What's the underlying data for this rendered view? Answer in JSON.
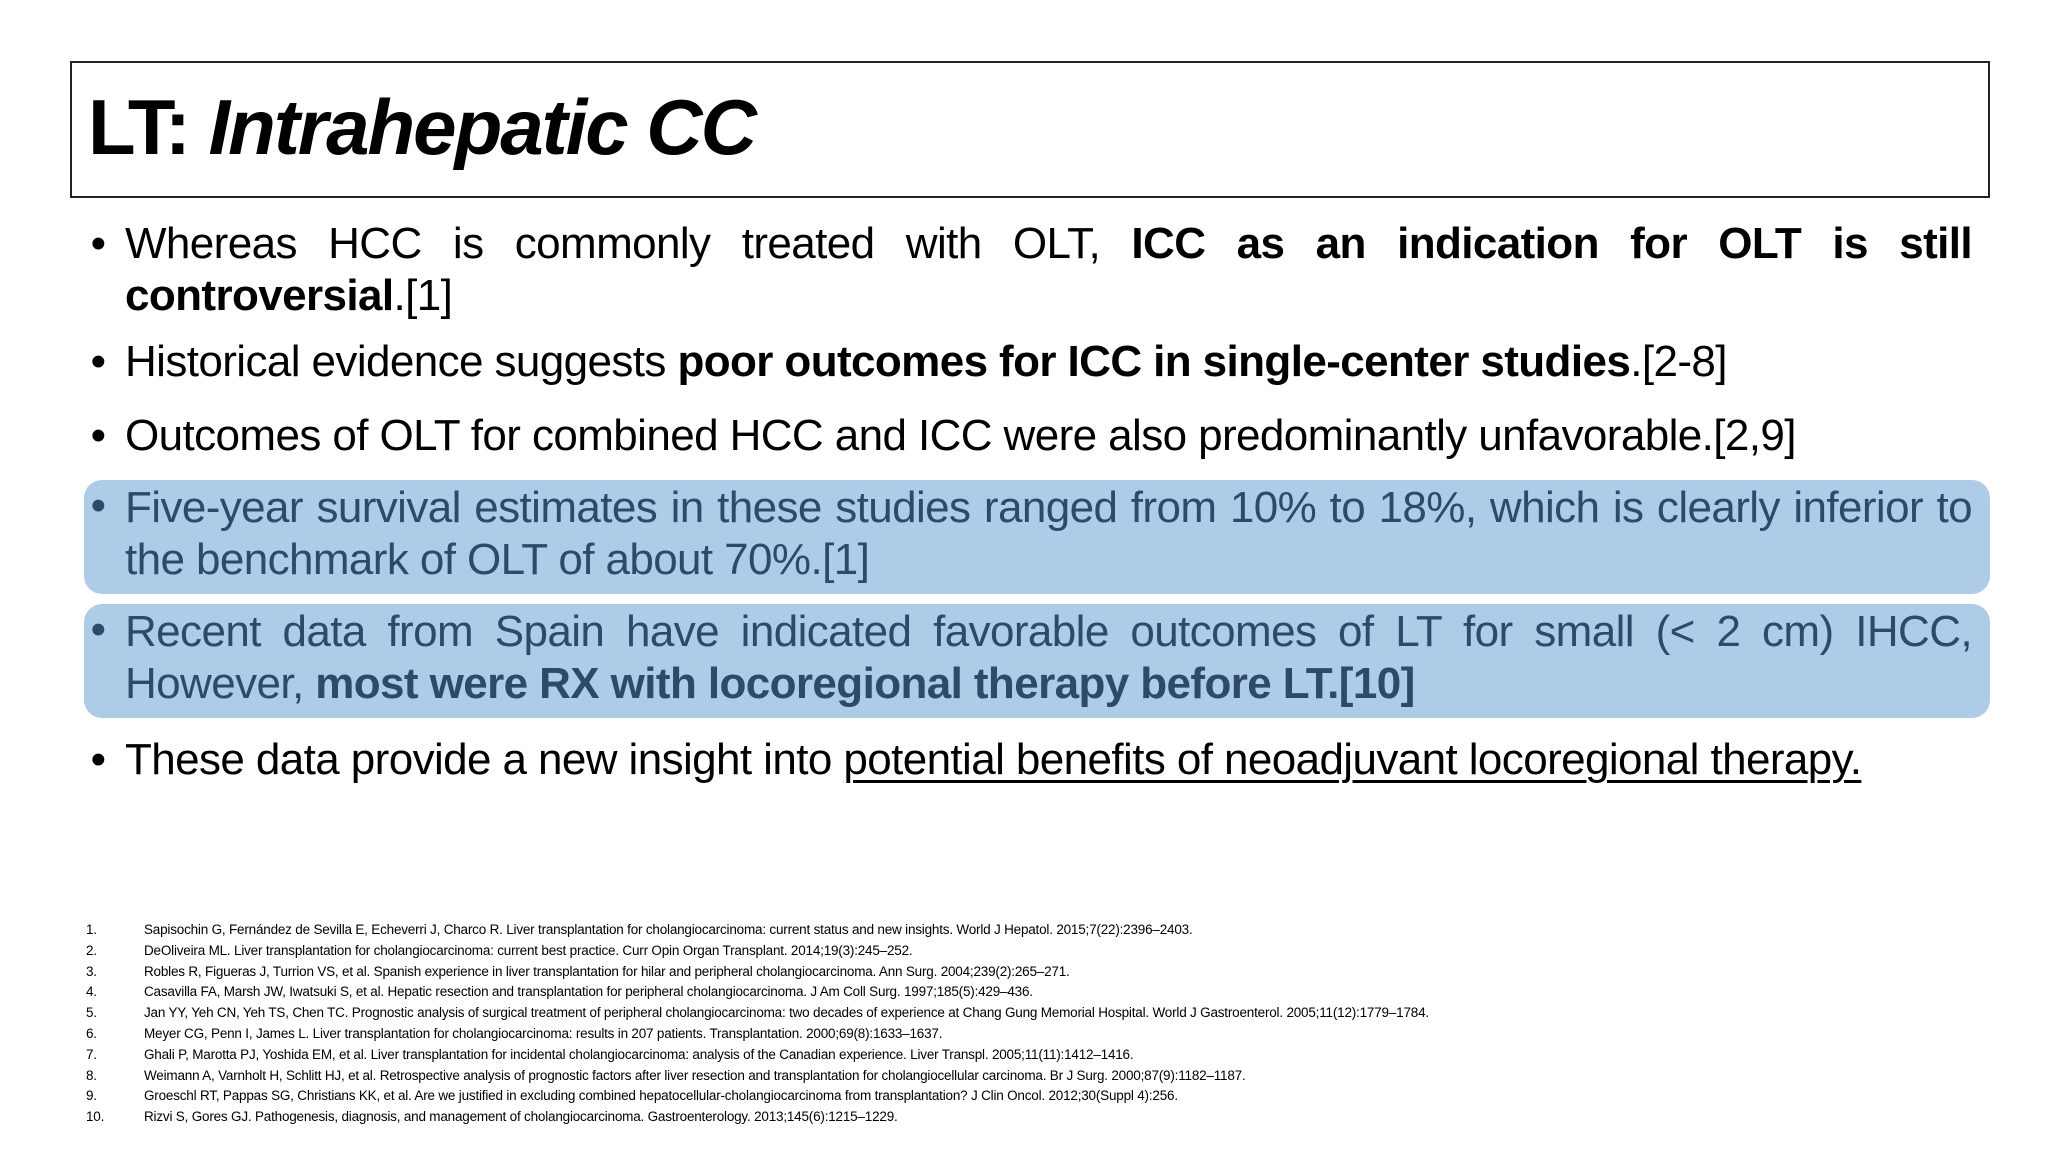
{
  "slide": {
    "title": {
      "prefix": "LT: ",
      "italic": "Intrahepatic CC"
    },
    "highlight_colors": {
      "box_background": "#AECBE8",
      "box_text": "#2E4A6B"
    },
    "bullets": [
      {
        "symbol": "•",
        "parts": [
          "Whereas HCC is commonly treated with OLT, ",
          "ICC as an indication for OLT is still controversial",
          ".[1]"
        ],
        "highlighted": false
      },
      {
        "symbol": "•",
        "parts": [
          "Historical evidence suggests ",
          "poor outcomes for ICC in single-center studies",
          ".[2-8]"
        ],
        "highlighted": false
      },
      {
        "symbol": "•",
        "parts": [
          "Outcomes of OLT for combined HCC and ICC were also predominantly unfavorable.[2,9]"
        ],
        "highlighted": false
      },
      {
        "symbol": "•",
        "parts": [
          "Five-year survival estimates in these studies ranged from 10% to 18%, which is clearly inferior to the benchmark of OLT of about 70%.[1]"
        ],
        "highlighted": true
      },
      {
        "symbol": "•",
        "parts": [
          "Recent data from Spain have indicated favorable outcomes of LT for small (< 2 cm) IHCC, However, ",
          "most were RX with locoregional therapy before LT.[10]"
        ],
        "highlighted": true
      },
      {
        "symbol": "•",
        "parts": [
          "These data provide a new insight into ",
          "potential benefits of neoadjuvant locoregional therapy."
        ],
        "highlighted": false
      }
    ],
    "references": [
      {
        "num": "1.",
        "text": "Sapisochin G, Fernández de Sevilla E, Echeverri J, Charco R. Liver transplantation for cholangiocarcinoma: current status and new insights. World J Hepatol. 2015;7(22):2396–2403."
      },
      {
        "num": "2.",
        "text": "DeOliveira ML. Liver transplantation for cholangiocarcinoma: current best practice. Curr Opin Organ Transplant. 2014;19(3):245–252."
      },
      {
        "num": "3.",
        "text": "Robles R, Figueras J, Turrion VS, et al. Spanish experience in liver transplantation for hilar and peripheral cholangiocarcinoma. Ann Surg. 2004;239(2):265–271."
      },
      {
        "num": "4.",
        "text": "Casavilla FA, Marsh JW, Iwatsuki S, et al. Hepatic resection and transplantation for peripheral cholangiocarcinoma. J Am Coll Surg. 1997;185(5):429–436."
      },
      {
        "num": "5.",
        "text": "Jan YY, Yeh CN, Yeh TS, Chen TC. Prognostic analysis of surgical treatment of peripheral cholangiocarcinoma: two decades of experience at Chang Gung Memorial Hospital. World J Gastroenterol. 2005;11(12):1779–1784."
      },
      {
        "num": "6.",
        "text": "Meyer CG, Penn I, James L. Liver transplantation for cholangiocarcinoma: results in 207 patients. Transplantation. 2000;69(8):1633–1637."
      },
      {
        "num": "7.",
        "text": "Ghali P, Marotta PJ, Yoshida EM, et al. Liver transplantation for incidental cholangiocarcinoma: analysis of the Canadian experience. Liver Transpl. 2005;11(11):1412–1416."
      },
      {
        "num": "8.",
        "text": "Weimann A, Varnholt H, Schlitt HJ, et al. Retrospective analysis of prognostic factors after liver resection and transplantation for cholangiocellular carcinoma. Br J Surg. 2000;87(9):1182–1187."
      },
      {
        "num": "9.",
        "text": "Groeschl RT, Pappas SG, Christians KK, et al. Are we justified in excluding combined hepatocellular-cholangiocarcinoma from transplantation? J Clin Oncol. 2012;30(Suppl 4):256."
      },
      {
        "num": "10.",
        "text": "Rizvi S, Gores GJ. Pathogenesis, diagnosis, and management of cholangiocarcinoma. Gastroenterology. 2013;145(6):1215–1229."
      }
    ]
  }
}
